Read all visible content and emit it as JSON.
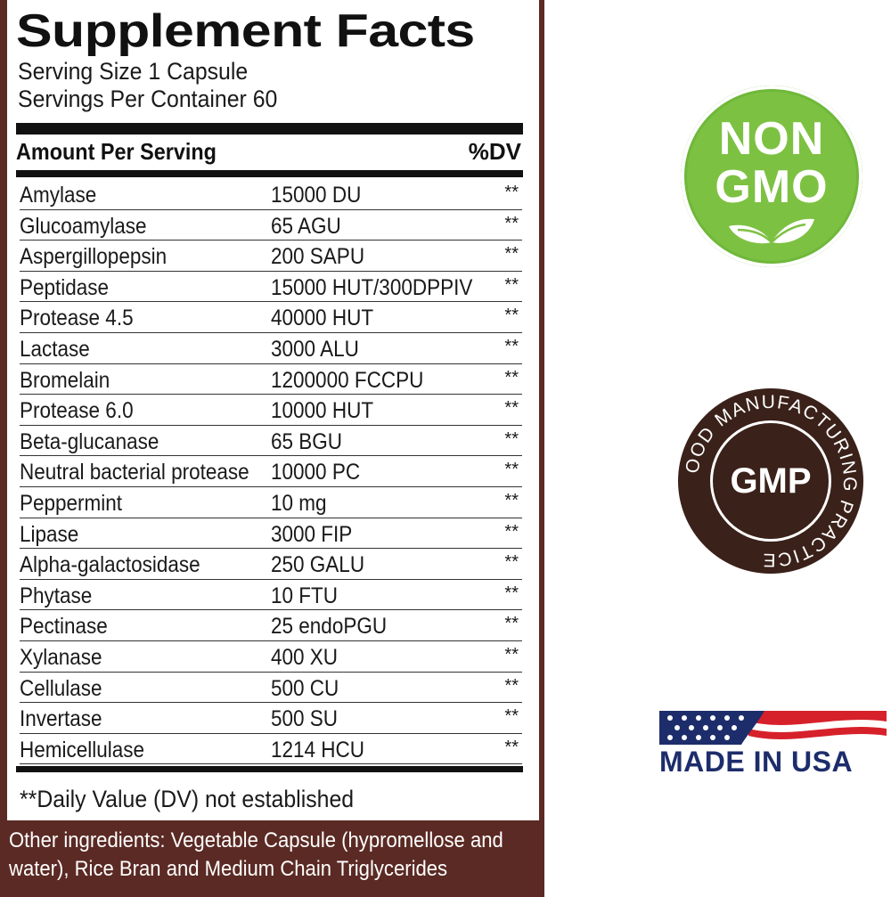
{
  "facts": {
    "title": "Supplement Facts",
    "serving_size": "Serving Size 1 Capsule",
    "servings_per_container": "Servings Per Container 60",
    "amount_header": "Amount Per Serving",
    "dv_header": "%DV",
    "rows": [
      {
        "name": "Amylase",
        "amount": "15000 DU",
        "dv": "**"
      },
      {
        "name": "Glucoamylase",
        "amount": "65 AGU",
        "dv": "**"
      },
      {
        "name": "Aspergillopepsin",
        "amount": "200 SAPU",
        "dv": "**"
      },
      {
        "name": "Peptidase",
        "amount": "15000 HUT/300DPPIV",
        "dv": "**"
      },
      {
        "name": "Protease 4.5",
        "amount": "40000 HUT",
        "dv": "**"
      },
      {
        "name": "Lactase",
        "amount": "3000 ALU",
        "dv": "**"
      },
      {
        "name": "Bromelain",
        "amount": "1200000 FCCPU",
        "dv": "**"
      },
      {
        "name": "Protease 6.0",
        "amount": "10000 HUT",
        "dv": "**"
      },
      {
        "name": "Beta-glucanase",
        "amount": "65 BGU",
        "dv": "**"
      },
      {
        "name": "Neutral bacterial protease",
        "amount": "10000 PC",
        "dv": "**"
      },
      {
        "name": "Peppermint",
        "amount": "10 mg",
        "dv": "**"
      },
      {
        "name": "Lipase",
        "amount": "3000 FIP",
        "dv": "**"
      },
      {
        "name": "Alpha-galactosidase",
        "amount": "250 GALU",
        "dv": "**"
      },
      {
        "name": "Phytase",
        "amount": "10 FTU",
        "dv": "**"
      },
      {
        "name": "Pectinase",
        "amount": "25 endoPGU",
        "dv": "**"
      },
      {
        "name": "Xylanase",
        "amount": "400 XU",
        "dv": "**"
      },
      {
        "name": "Cellulase",
        "amount": "500 CU",
        "dv": "**"
      },
      {
        "name": "Invertase",
        "amount": "500 SU",
        "dv": "**"
      },
      {
        "name": "Hemicellulase",
        "amount": "1214 HCU",
        "dv": "**"
      }
    ],
    "footnote": "**Daily Value (DV) not established",
    "other_ingredients_line1": "Other ingredients: Vegetable Capsule (hypromellose and",
    "other_ingredients_line2": "water), Rice Bran and Medium Chain Triglycerides"
  },
  "badges": {
    "non_gmo_line1": "NON",
    "non_gmo_line2": "GMO",
    "gmp_center": "GMP",
    "gmp_ring": "GOOD MANUFACTURING PRACTICE",
    "usa": "MADE IN USA"
  },
  "colors": {
    "panel_brown": "#5b2a24",
    "non_gmo_green": "#7dc142",
    "gmp_brown": "#3a2119",
    "usa_navy": "#1d2d6b",
    "usa_red": "#d6212b"
  }
}
